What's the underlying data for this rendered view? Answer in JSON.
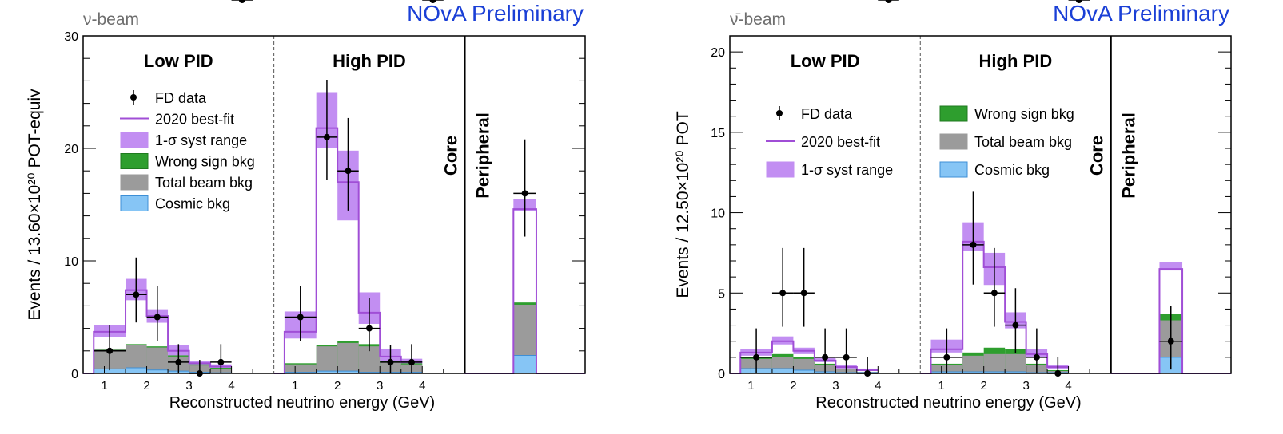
{
  "chart_data": [
    {
      "type": "bar",
      "beam_label": "ν-beam",
      "overlay_label": "NOvA Preliminary",
      "xlabel": "Reconstructed neutrino energy (GeV)",
      "ylabel": "Events / 13.60×10²⁰ POT-equiv",
      "ylim": [
        0,
        30
      ],
      "y_ticks": [
        "0",
        "10",
        "20",
        "30"
      ],
      "x_ticks": [
        "1",
        "2",
        "3",
        "4"
      ],
      "region_labels": {
        "low": "Low PID",
        "high": "High PID",
        "core": "Core",
        "peripheral": "Peripheral"
      },
      "legend_layout": "single-column",
      "legend": [
        {
          "key": "data",
          "label": "FD data"
        },
        {
          "key": "fit",
          "label": "2020 best-fit"
        },
        {
          "key": "syst",
          "label": "1-σ syst range"
        },
        {
          "key": "ws",
          "label": "Wrong sign bkg"
        },
        {
          "key": "beam",
          "label": "Total beam bkg"
        },
        {
          "key": "cosmic",
          "label": "Cosmic bkg"
        }
      ],
      "energy_bins": [
        0.75,
        1.5,
        2.0,
        2.5,
        3.0,
        3.5,
        4.0,
        4.5
      ],
      "low_pid": {
        "bestfit": [
          3.7,
          7.4,
          5.1,
          2.0,
          0.9,
          0.6
        ],
        "syst_low": [
          3.2,
          6.5,
          4.5,
          1.6,
          0.7,
          0.4
        ],
        "syst_high": [
          4.3,
          8.4,
          5.7,
          2.5,
          1.1,
          0.8
        ],
        "wrong_sign_top": [
          2.2,
          2.6,
          2.4,
          1.6,
          0.8,
          0.5
        ],
        "beam_top": [
          2.1,
          2.5,
          2.3,
          1.5,
          0.7,
          0.4
        ],
        "cosmic_top": [
          0.4,
          0.5,
          0.3,
          0.2,
          0.1,
          0.05
        ],
        "data_y": [
          2,
          7,
          5,
          1,
          0,
          1
        ],
        "data_err": [
          2.3,
          3.3,
          2.8,
          1.6,
          1.2,
          1.6
        ]
      },
      "high_pid": {
        "bestfit": [
          3.7,
          21.8,
          17.0,
          5.4,
          1.5,
          1.0
        ],
        "syst_low": [
          3.1,
          20.0,
          13.6,
          4.4,
          1.1,
          0.8
        ],
        "syst_high": [
          5.5,
          25.0,
          19.8,
          7.2,
          2.2,
          1.3
        ],
        "wrong_sign_top": [
          0.9,
          2.5,
          2.9,
          2.6,
          1.1,
          0.9
        ],
        "beam_top": [
          0.8,
          2.4,
          2.7,
          2.4,
          1.0,
          0.8
        ],
        "cosmic_top": [
          0.1,
          0.2,
          0.2,
          0.1,
          0.1,
          0.1
        ],
        "data_y": [
          5,
          21,
          18,
          4,
          1,
          1
        ],
        "data_err": [
          2.8,
          5.1,
          4.7,
          2.7,
          1.5,
          1.6
        ]
      },
      "peripheral": {
        "bestfit": 14.6,
        "syst_low": 14.4,
        "syst_high": 15.5,
        "wrong_sign_top": 6.3,
        "beam_top": 6.1,
        "cosmic_top": 1.6,
        "data_y": 16,
        "data_err": 4.8
      }
    },
    {
      "type": "bar",
      "beam_label": "ν̄-beam",
      "overlay_label": "NOvA Preliminary",
      "xlabel": "Reconstructed neutrino energy (GeV)",
      "ylabel": "Events / 12.50×10²⁰ POT",
      "ylim": [
        0,
        21
      ],
      "y_ticks": [
        "0",
        "5",
        "10",
        "15",
        "20"
      ],
      "x_ticks": [
        "1",
        "2",
        "3",
        "4"
      ],
      "region_labels": {
        "low": "Low PID",
        "high": "High PID",
        "core": "Core",
        "peripheral": "Peripheral"
      },
      "legend_layout": "two-column",
      "legend": [
        {
          "key": "data",
          "label": "FD data"
        },
        {
          "key": "fit",
          "label": "2020 best-fit"
        },
        {
          "key": "syst",
          "label": "1-σ syst range"
        },
        {
          "key": "ws",
          "label": "Wrong sign bkg"
        },
        {
          "key": "beam",
          "label": "Total beam bkg"
        },
        {
          "key": "cosmic",
          "label": "Cosmic bkg"
        }
      ],
      "energy_bins": [
        0.75,
        1.5,
        2.0,
        2.5,
        3.0,
        3.5,
        4.0,
        4.5
      ],
      "low_pid": {
        "bestfit": [
          1.3,
          2.0,
          1.4,
          0.8,
          0.4,
          0.2
        ],
        "syst_low": [
          1.1,
          1.8,
          1.2,
          0.7,
          0.3,
          0.15
        ],
        "syst_high": [
          1.5,
          2.3,
          1.6,
          0.95,
          0.5,
          0.3
        ],
        "wrong_sign_top": [
          1.0,
          1.2,
          1.0,
          0.6,
          0.3,
          0.1
        ],
        "beam_top": [
          0.9,
          1.0,
          0.9,
          0.5,
          0.25,
          0.1
        ],
        "cosmic_top": [
          0.3,
          0.3,
          0.2,
          0.1,
          0.05,
          0.05
        ],
        "data_y": [
          1,
          5,
          5,
          1,
          1,
          0
        ],
        "data_err": [
          1.8,
          2.8,
          2.8,
          1.8,
          1.8,
          1.0
        ]
      },
      "high_pid": {
        "bestfit": [
          1.5,
          8.2,
          6.6,
          3.2,
          1.2,
          0.4
        ],
        "syst_low": [
          1.3,
          7.6,
          5.5,
          2.8,
          1.0,
          0.3
        ],
        "syst_high": [
          2.1,
          9.4,
          7.5,
          3.8,
          1.5,
          0.5
        ],
        "wrong_sign_top": [
          0.6,
          1.3,
          1.6,
          1.5,
          0.6,
          0.2
        ],
        "beam_top": [
          0.5,
          1.1,
          1.2,
          1.2,
          0.5,
          0.15
        ],
        "cosmic_top": [
          0.1,
          0.1,
          0.1,
          0.1,
          0.05,
          0.05
        ],
        "data_y": [
          1,
          8,
          5,
          3,
          1,
          0
        ],
        "data_err": [
          1.8,
          3.3,
          2.8,
          2.3,
          1.8,
          1.0
        ]
      },
      "peripheral": {
        "bestfit": 6.5,
        "syst_low": 6.4,
        "syst_high": 6.9,
        "wrong_sign_top": 3.7,
        "beam_top": 3.3,
        "cosmic_top": 1.0,
        "data_y": 2,
        "data_err": 2.2
      }
    }
  ],
  "colors": {
    "frame": "#000000",
    "bestfit": "#a04ed6",
    "syst": "#c28ef2",
    "wrong_sign": "#2e9e2e",
    "wrong_sign_edge": "#1f7a1f",
    "beam": "#9b9b9b",
    "cosmic": "#86c5f5",
    "cosmic_edge": "#3d8fd6",
    "data": "#000000",
    "overlay_label": "#1a3fd6",
    "beam_label": "#6e6e6e"
  }
}
